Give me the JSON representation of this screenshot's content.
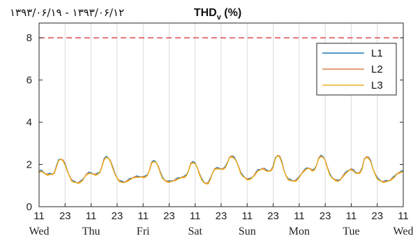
{
  "chart_data": {
    "type": "line",
    "title": "THD",
    "title_sub": "v",
    "title_unit": " (%)",
    "date_range": "۱۳۹۳/۰۶/۱۹ - ۱۳۹۳/۰۶/۱۲",
    "ylim": [
      0,
      8.7
    ],
    "y_ticks": [
      0,
      2,
      4,
      6,
      8
    ],
    "xlim": [
      11,
      179
    ],
    "x_ticks": [
      {
        "x": 11,
        "hour": "11",
        "day": "Wed"
      },
      {
        "x": 23,
        "hour": "23",
        "day": ""
      },
      {
        "x": 35,
        "hour": "11",
        "day": "Thu"
      },
      {
        "x": 47,
        "hour": "23",
        "day": ""
      },
      {
        "x": 59,
        "hour": "11",
        "day": "Fri"
      },
      {
        "x": 71,
        "hour": "23",
        "day": ""
      },
      {
        "x": 83,
        "hour": "11",
        "day": "Sat"
      },
      {
        "x": 95,
        "hour": "23",
        "day": ""
      },
      {
        "x": 107,
        "hour": "11",
        "day": "Sun"
      },
      {
        "x": 119,
        "hour": "23",
        "day": ""
      },
      {
        "x": 131,
        "hour": "11",
        "day": "Mon"
      },
      {
        "x": 143,
        "hour": "23",
        "day": ""
      },
      {
        "x": 155,
        "hour": "11",
        "day": "Tue"
      },
      {
        "x": 167,
        "hour": "23",
        "day": ""
      },
      {
        "x": 179,
        "hour": "11",
        "day": "Wed"
      }
    ],
    "grid": "vertical",
    "limit_line": {
      "y": 8,
      "color": "#d62728",
      "style": "dashed"
    },
    "legend_position": "top-right",
    "series": [
      {
        "name": "L1",
        "color": "#1f77b4",
        "offset": 0.02
      },
      {
        "name": "L2",
        "color": "#d9824f",
        "offset": 0.0
      },
      {
        "name": "L3",
        "color": "#edb120",
        "offset": -0.02
      }
    ],
    "base_profile": [
      [
        11,
        1.65
      ],
      [
        12,
        1.7
      ],
      [
        13,
        1.62
      ],
      [
        14,
        1.55
      ],
      [
        15,
        1.52
      ],
      [
        16,
        1.55
      ],
      [
        17,
        1.52
      ],
      [
        18,
        1.6
      ],
      [
        19,
        1.9
      ],
      [
        20,
        2.2
      ],
      [
        21,
        2.25
      ],
      [
        22,
        2.2
      ],
      [
        23,
        2.0
      ],
      [
        24,
        1.7
      ],
      [
        25,
        1.45
      ],
      [
        26,
        1.25
      ],
      [
        27,
        1.18
      ],
      [
        28,
        1.15
      ],
      [
        29,
        1.12
      ],
      [
        30,
        1.18
      ],
      [
        31,
        1.25
      ],
      [
        32,
        1.4
      ],
      [
        33,
        1.55
      ],
      [
        34,
        1.6
      ],
      [
        35,
        1.58
      ],
      [
        36,
        1.55
      ],
      [
        37,
        1.52
      ],
      [
        38,
        1.55
      ],
      [
        39,
        1.62
      ],
      [
        40,
        1.9
      ],
      [
        41,
        2.25
      ],
      [
        42,
        2.35
      ],
      [
        43,
        2.3
      ],
      [
        44,
        2.15
      ],
      [
        45,
        1.85
      ],
      [
        46,
        1.55
      ],
      [
        47,
        1.35
      ],
      [
        48,
        1.22
      ],
      [
        49,
        1.18
      ],
      [
        50,
        1.15
      ],
      [
        51,
        1.18
      ],
      [
        52,
        1.25
      ],
      [
        53,
        1.3
      ],
      [
        54,
        1.35
      ],
      [
        55,
        1.4
      ],
      [
        56,
        1.42
      ],
      [
        57,
        1.4
      ],
      [
        58,
        1.42
      ],
      [
        59,
        1.4
      ],
      [
        60,
        1.42
      ],
      [
        61,
        1.5
      ],
      [
        62,
        1.75
      ],
      [
        63,
        2.1
      ],
      [
        64,
        2.15
      ],
      [
        65,
        2.1
      ],
      [
        66,
        1.9
      ],
      [
        67,
        1.6
      ],
      [
        68,
        1.35
      ],
      [
        69,
        1.25
      ],
      [
        70,
        1.2
      ],
      [
        71,
        1.18
      ],
      [
        72,
        1.2
      ],
      [
        73,
        1.22
      ],
      [
        74,
        1.28
      ],
      [
        75,
        1.33
      ],
      [
        76,
        1.35
      ],
      [
        77,
        1.4
      ],
      [
        78,
        1.42
      ],
      [
        79,
        1.48
      ],
      [
        80,
        1.72
      ],
      [
        81,
        2.05
      ],
      [
        82,
        2.1
      ],
      [
        83,
        2.05
      ],
      [
        84,
        1.85
      ],
      [
        85,
        1.55
      ],
      [
        86,
        1.3
      ],
      [
        87,
        1.15
      ],
      [
        88,
        1.1
      ],
      [
        89,
        1.12
      ],
      [
        90,
        1.3
      ],
      [
        91,
        1.6
      ],
      [
        92,
        1.78
      ],
      [
        93,
        1.82
      ],
      [
        94,
        1.8
      ],
      [
        95,
        1.78
      ],
      [
        96,
        1.8
      ],
      [
        97,
        1.88
      ],
      [
        98,
        2.1
      ],
      [
        99,
        2.35
      ],
      [
        100,
        2.38
      ],
      [
        101,
        2.32
      ],
      [
        102,
        2.15
      ],
      [
        103,
        1.9
      ],
      [
        104,
        1.6
      ],
      [
        105,
        1.45
      ],
      [
        106,
        1.38
      ],
      [
        107,
        1.3
      ],
      [
        108,
        1.3
      ],
      [
        109,
        1.35
      ],
      [
        110,
        1.45
      ],
      [
        111,
        1.6
      ],
      [
        112,
        1.72
      ],
      [
        113,
        1.75
      ],
      [
        114,
        1.8
      ],
      [
        115,
        1.78
      ],
      [
        116,
        1.7
      ],
      [
        117,
        1.68
      ],
      [
        118,
        1.72
      ],
      [
        119,
        1.9
      ],
      [
        120,
        2.3
      ],
      [
        121,
        2.42
      ],
      [
        122,
        2.38
      ],
      [
        123,
        2.1
      ],
      [
        124,
        1.7
      ],
      [
        125,
        1.45
      ],
      [
        126,
        1.3
      ],
      [
        127,
        1.25
      ],
      [
        128,
        1.22
      ],
      [
        129,
        1.22
      ],
      [
        130,
        1.28
      ],
      [
        131,
        1.4
      ],
      [
        132,
        1.55
      ],
      [
        133,
        1.68
      ],
      [
        134,
        1.78
      ],
      [
        135,
        1.82
      ],
      [
        136,
        1.8
      ],
      [
        137,
        1.72
      ],
      [
        138,
        1.75
      ],
      [
        139,
        1.95
      ],
      [
        140,
        2.3
      ],
      [
        141,
        2.4
      ],
      [
        142,
        2.35
      ],
      [
        143,
        2.2
      ],
      [
        144,
        1.85
      ],
      [
        145,
        1.55
      ],
      [
        146,
        1.38
      ],
      [
        147,
        1.3
      ],
      [
        148,
        1.25
      ],
      [
        149,
        1.22
      ],
      [
        150,
        1.28
      ],
      [
        151,
        1.42
      ],
      [
        152,
        1.55
      ],
      [
        153,
        1.65
      ],
      [
        154,
        1.72
      ],
      [
        155,
        1.78
      ],
      [
        156,
        1.72
      ],
      [
        157,
        1.6
      ],
      [
        158,
        1.58
      ],
      [
        159,
        1.62
      ],
      [
        160,
        1.8
      ],
      [
        161,
        2.25
      ],
      [
        162,
        2.35
      ],
      [
        163,
        2.32
      ],
      [
        164,
        2.15
      ],
      [
        165,
        1.8
      ],
      [
        166,
        1.55
      ],
      [
        167,
        1.35
      ],
      [
        168,
        1.25
      ],
      [
        169,
        1.2
      ],
      [
        170,
        1.18
      ],
      [
        171,
        1.2
      ],
      [
        172,
        1.22
      ],
      [
        173,
        1.25
      ],
      [
        174,
        1.35
      ],
      [
        175,
        1.42
      ],
      [
        176,
        1.55
      ],
      [
        177,
        1.6
      ],
      [
        178,
        1.65
      ],
      [
        179,
        1.68
      ]
    ]
  }
}
